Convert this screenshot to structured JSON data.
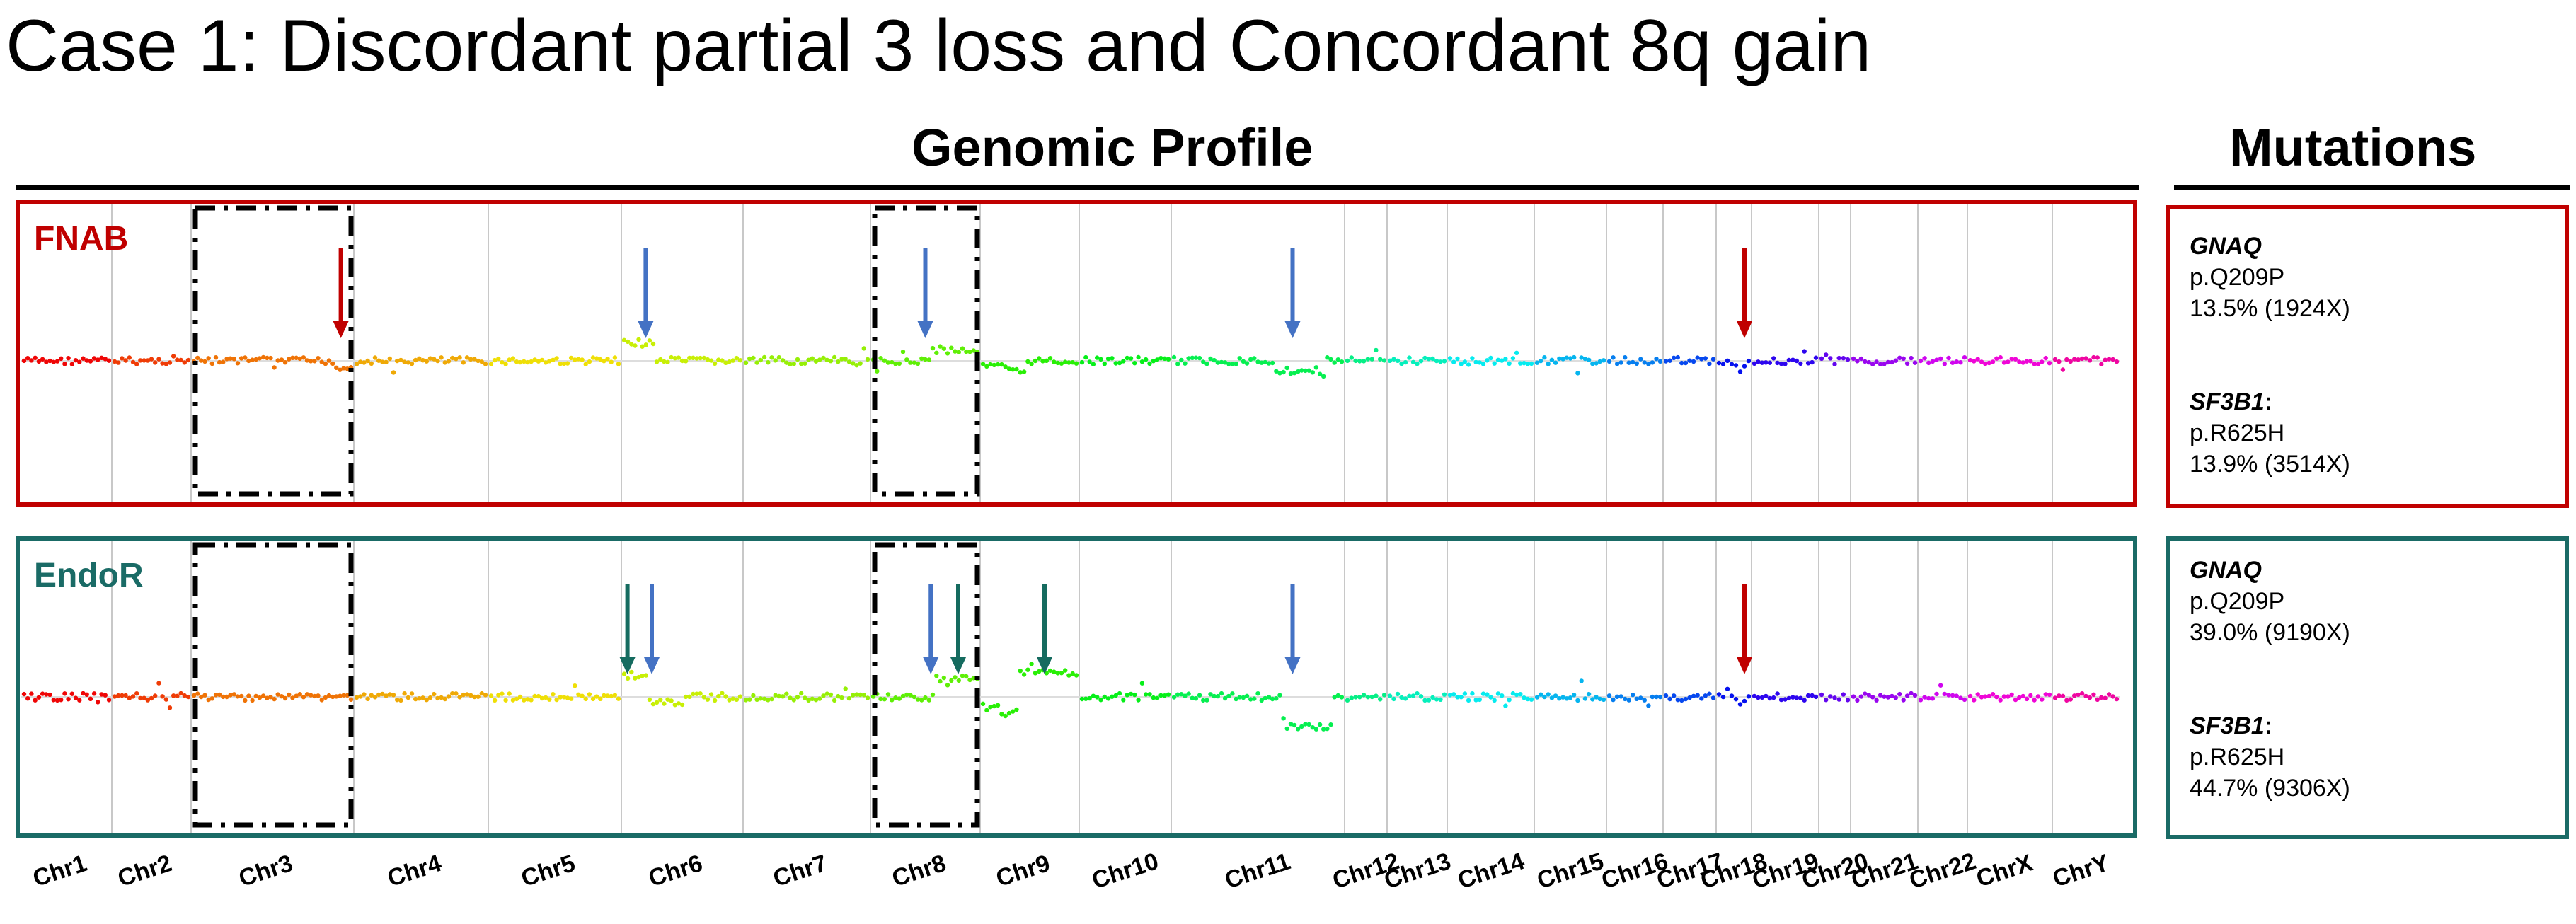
{
  "figure_title": "Case 1: Discordant partial 3 loss and Concordant 8q gain",
  "headers": {
    "genomic": "Genomic Profile",
    "mutations": "Mutations"
  },
  "colors": {
    "fnab": "#c00000",
    "endor": "#1a6b66",
    "red_arrow": "#c00000",
    "blue_arrow": "#4472c4",
    "teal_arrow": "#156b5f"
  },
  "chart_data": {
    "type": "scatter",
    "title": "Genomic Profile",
    "xlabel": "",
    "ylabel": "",
    "x_unit": "chromosome",
    "chromosomes": [
      "Chr1",
      "Chr2",
      "Chr3",
      "Chr4",
      "Chr5",
      "Chr6",
      "Chr7",
      "Chr8",
      "Chr9",
      "Chr10",
      "Chr11",
      "Chr12",
      "Chr13",
      "Chr14",
      "Chr15",
      "Chr16",
      "Chr17",
      "Chr18",
      "Chr19",
      "Chr20",
      "Chr21",
      "Chr22",
      "ChrX",
      "ChrY"
    ],
    "dashed_boxes": [
      "Chr3",
      "Chr8"
    ],
    "panels": [
      {
        "name": "FNAB",
        "copy_number_segments": [
          {
            "chr": "Chr3",
            "from": 0.9,
            "to": 1.0,
            "level": -0.35
          },
          {
            "chr": "Chr6",
            "from": 0.0,
            "to": 0.25,
            "level": 0.9
          },
          {
            "chr": "Chr8",
            "from": 0.0,
            "to": 0.05,
            "level": -0.5
          },
          {
            "chr": "Chr8",
            "from": 0.55,
            "to": 1.0,
            "level": 0.55
          },
          {
            "chr": "Chr9",
            "from": 0.0,
            "to": 0.25,
            "level": -0.3
          },
          {
            "chr": "Chr9",
            "from": 0.25,
            "to": 0.45,
            "level": -0.55
          },
          {
            "chr": "Chr11",
            "from": 0.6,
            "to": 0.9,
            "level": -0.5
          },
          {
            "chr": "Chr18",
            "from": 0.5,
            "to": 0.9,
            "level": -0.4
          }
        ],
        "arrows": [
          {
            "chr": "Chr3",
            "pos": 0.92,
            "color": "red"
          },
          {
            "chr": "Chr6",
            "pos": 0.2,
            "color": "blue"
          },
          {
            "chr": "Chr8",
            "pos": 0.5,
            "color": "blue"
          },
          {
            "chr": "Chr11",
            "pos": 0.7,
            "color": "blue"
          },
          {
            "chr": "Chr18",
            "pos": 0.8,
            "color": "red"
          }
        ]
      },
      {
        "name": "EndoR",
        "copy_number_segments": [
          {
            "chr": "Chr6",
            "from": 0.0,
            "to": 0.2,
            "level": 1.1
          },
          {
            "chr": "Chr6",
            "from": 0.2,
            "to": 0.5,
            "level": -0.3
          },
          {
            "chr": "Chr8",
            "from": 0.6,
            "to": 1.0,
            "level": 0.9
          },
          {
            "chr": "Chr9",
            "from": 0.0,
            "to": 0.2,
            "level": -0.5
          },
          {
            "chr": "Chr9",
            "from": 0.2,
            "to": 0.38,
            "level": -0.8
          },
          {
            "chr": "Chr9",
            "from": 0.38,
            "to": 1.0,
            "level": 1.2
          },
          {
            "chr": "Chr11",
            "from": 0.65,
            "to": 0.95,
            "level": -1.5
          },
          {
            "chr": "Chr18",
            "from": 0.6,
            "to": 0.9,
            "level": -0.3
          }
        ],
        "arrows": [
          {
            "chr": "Chr6",
            "pos": 0.05,
            "color": "teal"
          },
          {
            "chr": "Chr6",
            "pos": 0.25,
            "color": "blue"
          },
          {
            "chr": "Chr8",
            "pos": 0.55,
            "color": "blue"
          },
          {
            "chr": "Chr8",
            "pos": 0.8,
            "color": "teal"
          },
          {
            "chr": "Chr9",
            "pos": 0.65,
            "color": "teal"
          },
          {
            "chr": "Chr11",
            "pos": 0.7,
            "color": "blue"
          },
          {
            "chr": "Chr18",
            "pos": 0.8,
            "color": "red"
          }
        ]
      }
    ]
  },
  "mutations": {
    "fnab": {
      "gnaq": {
        "gene": "GNAQ",
        "change": "p.Q209P",
        "vaf": "13.5% (1924X)"
      },
      "sf3b1": {
        "gene": "SF3B1",
        "suffix": ":",
        "change": "p.R625H",
        "vaf": "13.9% (3514X)"
      }
    },
    "endor": {
      "gnaq": {
        "gene": "GNAQ",
        "change": "p.Q209P",
        "vaf": "39.0% (9190X)"
      },
      "sf3b1": {
        "gene": "SF3B1",
        "suffix": ":",
        "change": "p.R625H",
        "vaf": "44.7% (9306X)"
      }
    }
  }
}
